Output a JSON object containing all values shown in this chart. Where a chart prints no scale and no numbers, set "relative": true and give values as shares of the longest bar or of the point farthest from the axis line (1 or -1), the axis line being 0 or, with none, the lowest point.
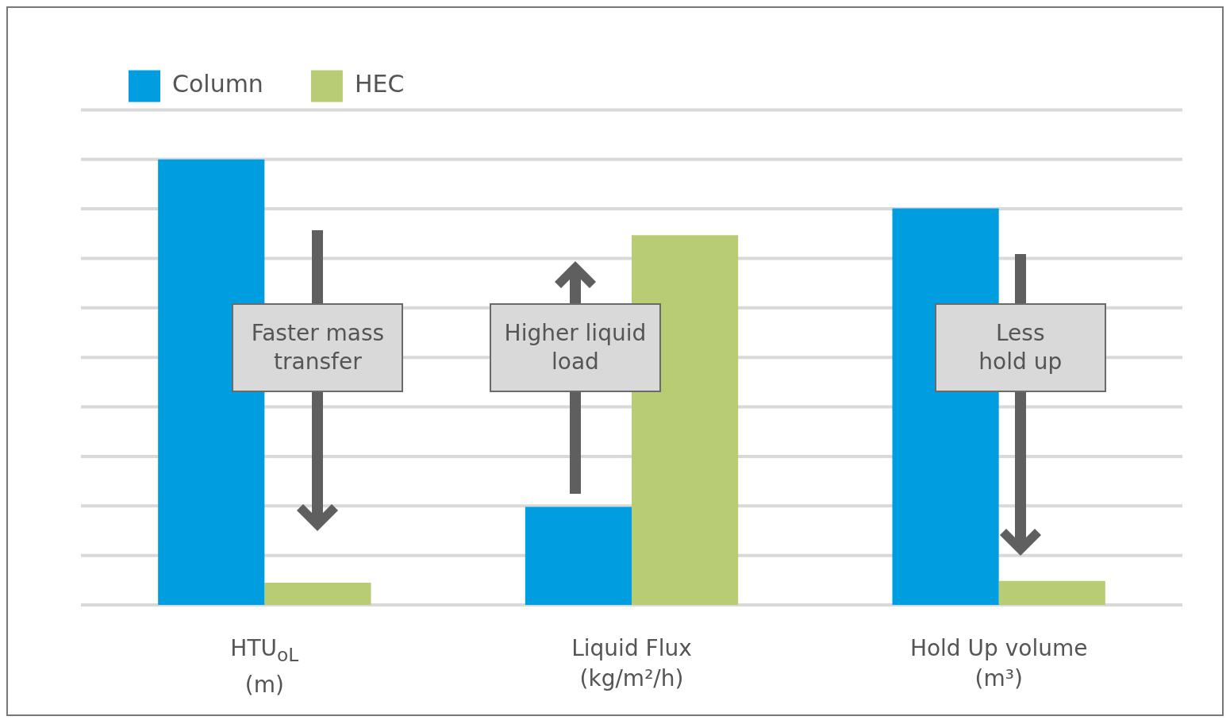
{
  "chart_data": {
    "type": "bar",
    "relative": true,
    "categories": [
      "HTU$_{oL}$\n(m)",
      "Liquid Flux\n(kg/m²/h)",
      "Hold Up volume\n(m³)"
    ],
    "series": [
      {
        "name": "Column",
        "color": "#009ee0",
        "values": [
          1,
          0.22,
          0.89
        ]
      },
      {
        "name": "HEC",
        "color": "#b7cc73",
        "values": [
          0.05,
          0.83,
          0.054
        ]
      }
    ],
    "annotations": [
      "Faster mass\ntransfer",
      "Higher liquid\nload",
      "Less\nhold up"
    ],
    "grid": true,
    "legend": "top left",
    "tick_labels": "x"
  }
}
